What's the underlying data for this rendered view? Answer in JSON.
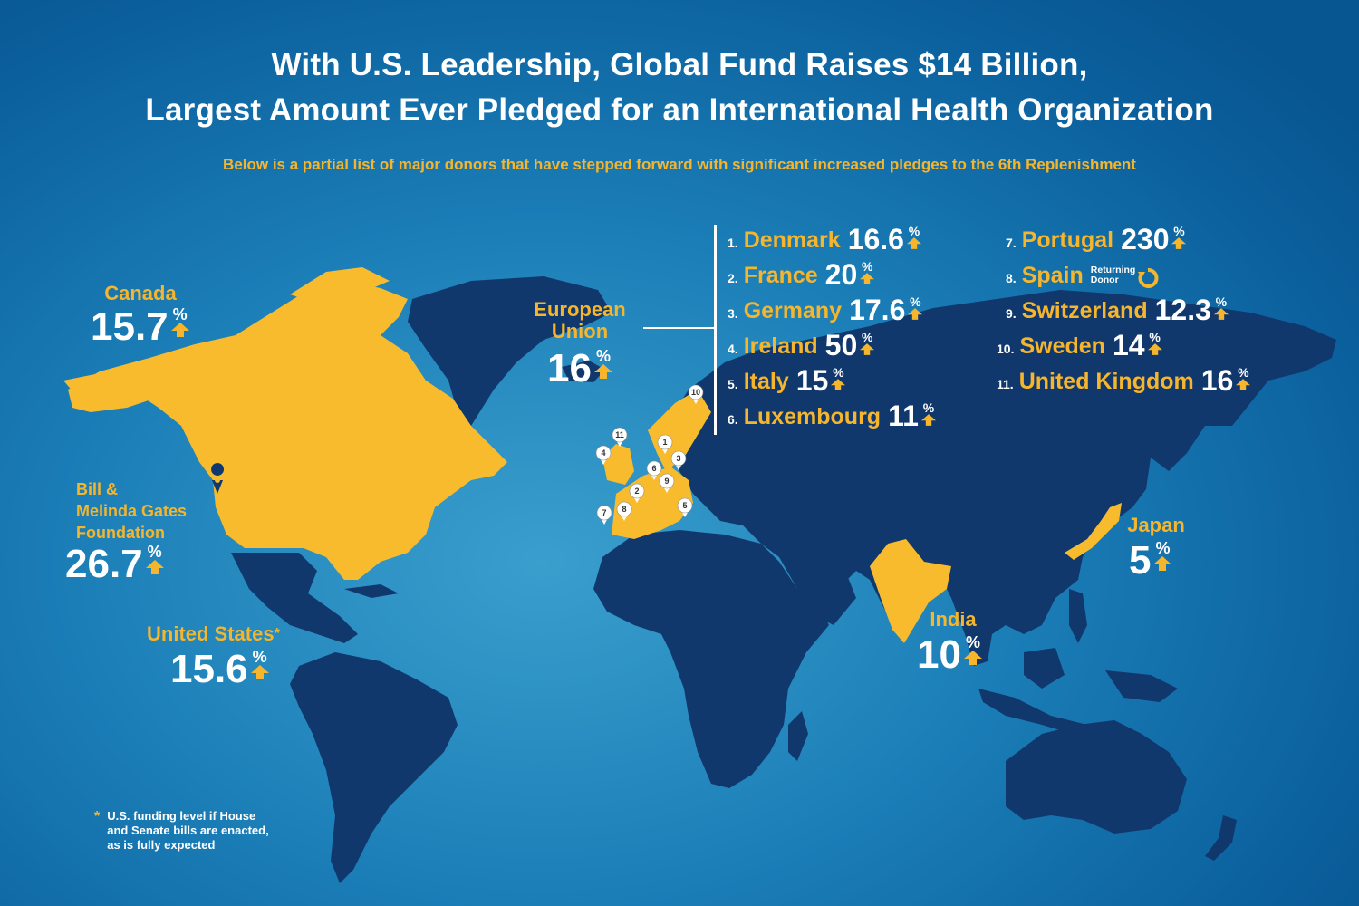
{
  "title_line1": "With U.S. Leadership, Global Fund Raises $14 Billion,",
  "title_line2": "Largest Amount Ever Pledged for an International Health Organization",
  "subtitle": "Below is a partial list of major donors that have stepped forward with significant increased pledges to the 6th Replenishment",
  "pct_symbol": "%",
  "colors": {
    "land": "#10386d",
    "highlight": "#f8bb2e",
    "accent": "#f5b52c",
    "background": "#1c7fb8"
  },
  "icons": {
    "increase": "up-arrow-icon",
    "returning": "circular-arrow-icon",
    "location": "map-pin-icon"
  },
  "donors": {
    "canada": {
      "name": "Canada",
      "value": "15.7"
    },
    "gates": {
      "name_line1": "Bill &",
      "name_line2": "Melinda Gates",
      "name_line3": "Foundation",
      "value": "26.7"
    },
    "united_states": {
      "name": "United States",
      "asterisk": "*",
      "value": "15.6"
    },
    "european_union": {
      "name_line1": "European",
      "name_line2": "Union",
      "value": "16"
    },
    "japan": {
      "name": "Japan",
      "value": "5"
    },
    "india": {
      "name": "India",
      "value": "10"
    }
  },
  "eu_list": [
    {
      "index": "1.",
      "name": "Denmark",
      "value": "16.6"
    },
    {
      "index": "2.",
      "name": "France",
      "value": "20"
    },
    {
      "index": "3.",
      "name": "Germany",
      "value": "17.6"
    },
    {
      "index": "4.",
      "name": "Ireland",
      "value": "50"
    },
    {
      "index": "5.",
      "name": "Italy",
      "value": "15"
    },
    {
      "index": "6.",
      "name": "Luxembourg",
      "value": "11"
    },
    {
      "index": "7.",
      "name": "Portugal",
      "value": "230"
    },
    {
      "index": "8.",
      "name": "Spain",
      "note_line1": "Returning",
      "note_line2": "Donor"
    },
    {
      "index": "9.",
      "name": "Switzerland",
      "value": "12.3"
    },
    {
      "index": "10.",
      "name": "Sweden",
      "value": "14"
    },
    {
      "index": "11.",
      "name": "United Kingdom",
      "value": "16"
    }
  ],
  "map_pins": [
    "1",
    "2",
    "3",
    "4",
    "5",
    "6",
    "7",
    "8",
    "9",
    "10",
    "11"
  ],
  "footnote": {
    "marker": "*",
    "line1": "U.S. funding level if House",
    "line2": "and Senate bills are enacted,",
    "line3": "as is fully expected"
  }
}
